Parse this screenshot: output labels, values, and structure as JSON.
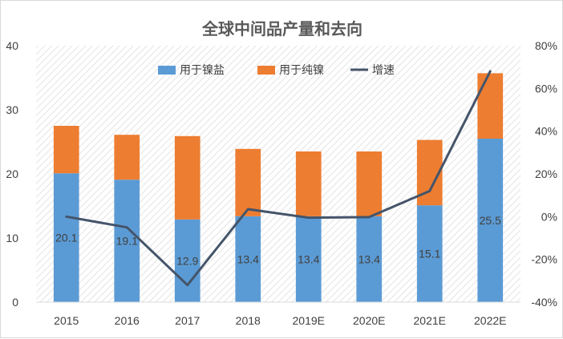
{
  "chart_data": {
    "type": "bar",
    "stacked": true,
    "title": "全球中间品产量和去向",
    "categories": [
      "2015",
      "2016",
      "2017",
      "2018",
      "2019E",
      "2020E",
      "2021E",
      "2022E"
    ],
    "series": [
      {
        "name": "用于镍盐",
        "type": "bar",
        "axis": "left",
        "color": "#5b9bd5",
        "values": [
          20.1,
          19.1,
          12.9,
          13.4,
          13.4,
          13.4,
          15.1,
          25.5
        ],
        "data_labels": [
          "20.1",
          "19.1",
          "12.9",
          "13.4",
          "13.4",
          "13.4",
          "15.1",
          "25.5"
        ]
      },
      {
        "name": "用于纯镍",
        "type": "bar",
        "axis": "left",
        "color": "#ed7d31",
        "values": [
          7.4,
          7.0,
          13.0,
          10.5,
          10.1,
          10.1,
          10.2,
          10.2
        ]
      },
      {
        "name": "增速",
        "type": "line",
        "axis": "right",
        "color": "#44546a",
        "values": [
          0,
          -5,
          -32,
          3.5,
          -0.5,
          -0.2,
          12,
          68
        ]
      }
    ],
    "y_left": {
      "min": 0,
      "max": 40,
      "step": 10,
      "ticks": [
        "0",
        "10",
        "20",
        "30",
        "40"
      ]
    },
    "y_right": {
      "min": -40,
      "max": 80,
      "step": 20,
      "ticks": [
        "-40%",
        "-20%",
        "0%",
        "20%",
        "40%",
        "60%",
        "80%"
      ]
    },
    "legend_position": "top",
    "grid": false,
    "plot_background": "diagonal-hatch"
  }
}
